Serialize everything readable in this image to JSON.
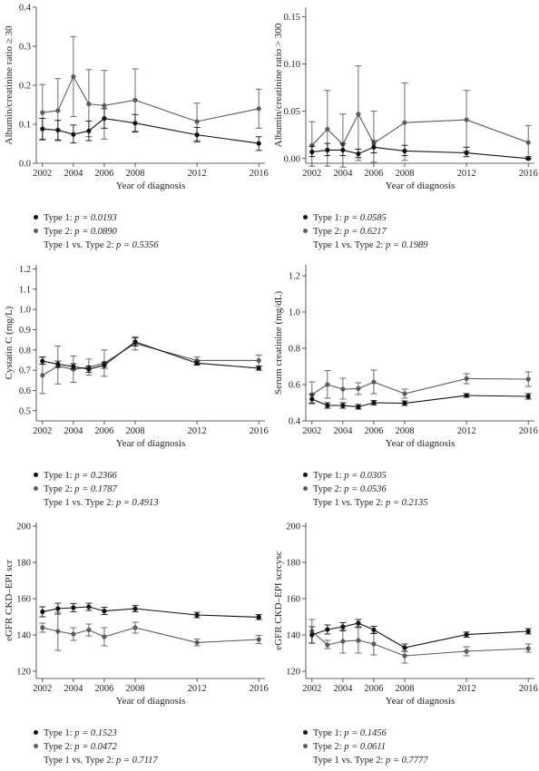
{
  "colors": {
    "type1": "#111111",
    "type2": "#5c5c5c",
    "axis": "#333333"
  },
  "chart_data": [
    {
      "type": "line",
      "xlabel": "Year of diagnosis",
      "ylabel": "Albumin/creatinine ratio ≥ 30",
      "xticks": [
        2002,
        2004,
        2006,
        2008,
        2012,
        2016
      ],
      "yticks": [
        "0.0",
        "0.1",
        "0.2",
        "0.3",
        "0.4"
      ],
      "ylim": [
        0,
        0.4
      ],
      "series": [
        {
          "name": "Type 1",
          "x": [
            2002,
            2003,
            2004,
            2005,
            2006,
            2008,
            2012,
            2016
          ],
          "y": [
            0.088,
            0.085,
            0.074,
            0.083,
            0.115,
            0.103,
            0.073,
            0.051
          ],
          "lo": [
            0.06,
            0.06,
            0.052,
            0.058,
            0.09,
            0.08,
            0.055,
            0.033
          ],
          "hi": [
            0.115,
            0.11,
            0.098,
            0.108,
            0.14,
            0.125,
            0.092,
            0.068
          ]
        },
        {
          "name": "Type 2",
          "x": [
            2002,
            2003,
            2004,
            2005,
            2006,
            2008,
            2012,
            2016
          ],
          "y": [
            0.13,
            0.135,
            0.222,
            0.152,
            0.148,
            0.162,
            0.107,
            0.14
          ],
          "lo": [
            0.062,
            0.058,
            0.12,
            0.068,
            0.062,
            0.082,
            0.058,
            0.09
          ],
          "hi": [
            0.202,
            0.217,
            0.325,
            0.24,
            0.238,
            0.242,
            0.154,
            0.19
          ]
        }
      ],
      "legend": [
        {
          "series": "Type 1",
          "label": "Type 1: ",
          "p": "p = 0.0193"
        },
        {
          "series": "Type 2",
          "label": "Type 2: ",
          "p": "p = 0.0890"
        },
        {
          "label": "Type 1 vs. Type 2: ",
          "p": "p = 0.5356"
        }
      ]
    },
    {
      "type": "line",
      "xlabel": "Year of diagnosis",
      "ylabel": "Albumin/creatinine ratio > 300",
      "xticks": [
        2002,
        2004,
        2006,
        2008,
        2012,
        2016
      ],
      "yticks": [
        "0.00",
        "0.05",
        "0.10",
        "0.15"
      ],
      "ylim": [
        -0.005,
        0.16
      ],
      "series": [
        {
          "name": "Type 1",
          "x": [
            2002,
            2003,
            2004,
            2005,
            2006,
            2008,
            2012,
            2016
          ],
          "y": [
            0.007,
            0.009,
            0.009,
            0.005,
            0.012,
            0.008,
            0.006,
            0.0
          ],
          "lo": [
            0.002,
            0.003,
            0.003,
            0.001,
            0.006,
            0.003,
            0.002,
            0.0
          ],
          "hi": [
            0.013,
            0.016,
            0.016,
            0.01,
            0.019,
            0.014,
            0.012,
            0.002
          ]
        },
        {
          "name": "Type 2",
          "x": [
            2002,
            2003,
            2004,
            2005,
            2006,
            2008,
            2012,
            2016
          ],
          "y": [
            0.014,
            0.031,
            0.015,
            0.047,
            0.016,
            0.038,
            0.041,
            0.017
          ],
          "lo": [
            -0.008,
            -0.008,
            -0.009,
            -0.002,
            -0.004,
            -0.002,
            0.008,
            -0.001
          ],
          "hi": [
            0.039,
            0.072,
            0.047,
            0.098,
            0.05,
            0.08,
            0.072,
            0.035
          ]
        }
      ],
      "legend": [
        {
          "series": "Type 1",
          "label": "Type 1: ",
          "p": "p = 0.0585"
        },
        {
          "series": "Type 2",
          "label": "Type 2: ",
          "p": "p = 0.6217"
        },
        {
          "label": "Type 1 vs. Type 2: ",
          "p": "p = 0.1989"
        }
      ]
    },
    {
      "type": "line",
      "xlabel": "Year of diagnosis",
      "ylabel": "Cystatin C (mg/L)",
      "xticks": [
        2002,
        2004,
        2006,
        2008,
        2012,
        2016
      ],
      "yticks": [
        "0.5",
        "0.6",
        "0.7",
        "0.8",
        "0.9",
        "1.0",
        "1.1",
        "1.2"
      ],
      "ylim": [
        0.45,
        1.22
      ],
      "series": [
        {
          "name": "Type 1",
          "x": [
            2002,
            2003,
            2004,
            2005,
            2006,
            2008,
            2012,
            2016
          ],
          "y": [
            0.745,
            0.73,
            0.718,
            0.705,
            0.725,
            0.84,
            0.735,
            0.71
          ],
          "lo": [
            0.73,
            0.715,
            0.705,
            0.69,
            0.71,
            0.82,
            0.725,
            0.7
          ],
          "hi": [
            0.765,
            0.745,
            0.732,
            0.72,
            0.74,
            0.86,
            0.745,
            0.72
          ]
        },
        {
          "name": "Type 2",
          "x": [
            2002,
            2003,
            2004,
            2005,
            2006,
            2008,
            2012,
            2016
          ],
          "y": [
            0.675,
            0.72,
            0.705,
            0.715,
            0.735,
            0.832,
            0.748,
            0.748
          ],
          "lo": [
            0.585,
            0.632,
            0.64,
            0.675,
            0.67,
            0.8,
            0.73,
            0.72
          ],
          "hi": [
            0.765,
            0.82,
            0.77,
            0.755,
            0.8,
            0.865,
            0.765,
            0.775
          ]
        }
      ],
      "legend": [
        {
          "series": "Type 1",
          "label": "Type 1: ",
          "p": "p = 0.2366"
        },
        {
          "series": "Type 2",
          "label": "Type 2: ",
          "p": "p = 0.1787"
        },
        {
          "label": "Type 1 vs. Type 2: ",
          "p": "p = 0.4913"
        }
      ]
    },
    {
      "type": "line",
      "xlabel": "Year of diagnosis",
      "ylabel": "Serum creatinine (mg/dL)",
      "xticks": [
        2002,
        2004,
        2006,
        2008,
        2012,
        2016
      ],
      "yticks": [
        "0.4",
        "0.6",
        "0.8",
        "1.0",
        "1.2"
      ],
      "ylim": [
        0.4,
        1.26
      ],
      "series": [
        {
          "name": "Type 1",
          "x": [
            2002,
            2003,
            2004,
            2005,
            2006,
            2008,
            2012,
            2016
          ],
          "y": [
            0.52,
            0.485,
            0.485,
            0.477,
            0.5,
            0.497,
            0.54,
            0.535
          ],
          "lo": [
            0.495,
            0.47,
            0.47,
            0.465,
            0.488,
            0.485,
            0.53,
            0.52
          ],
          "hi": [
            0.545,
            0.5,
            0.5,
            0.49,
            0.512,
            0.51,
            0.55,
            0.55
          ]
        },
        {
          "name": "Type 2",
          "x": [
            2002,
            2003,
            2004,
            2005,
            2006,
            2008,
            2012,
            2016
          ],
          "y": [
            0.545,
            0.6,
            0.575,
            0.578,
            0.614,
            0.55,
            0.633,
            0.63
          ],
          "lo": [
            0.5,
            0.525,
            0.52,
            0.545,
            0.55,
            0.525,
            0.605,
            0.59
          ],
          "hi": [
            0.615,
            0.677,
            0.635,
            0.61,
            0.68,
            0.575,
            0.66,
            0.67
          ]
        }
      ],
      "legend": [
        {
          "series": "Type 1",
          "label": "Type 1: ",
          "p": "p = 0.0305"
        },
        {
          "series": "Type 2",
          "label": "Type 2: ",
          "p": "p = 0.0536"
        },
        {
          "label": "Type 1 vs. Type 2: ",
          "p": "p = 0.2135"
        }
      ]
    },
    {
      "type": "line",
      "xlabel": "Year of diagnosis",
      "ylabel": "eGFR CKD–EPI scr",
      "xticks": [
        2002,
        2004,
        2006,
        2008,
        2012,
        2016
      ],
      "yticks": [
        "120",
        "140",
        "160",
        "180",
        "200"
      ],
      "ylim": [
        116,
        202
      ],
      "series": [
        {
          "name": "Type 1",
          "x": [
            2002,
            2003,
            2004,
            2005,
            2006,
            2008,
            2012,
            2016
          ],
          "y": [
            152.8,
            154.5,
            155,
            155.5,
            153.2,
            154.5,
            151,
            149.8
          ],
          "lo": [
            150,
            151.5,
            152.8,
            153.5,
            151.2,
            152.8,
            149.5,
            148.5
          ],
          "hi": [
            155.5,
            157.5,
            157.3,
            157.5,
            155.2,
            156.2,
            152.5,
            151.2
          ]
        },
        {
          "name": "Type 2",
          "x": [
            2002,
            2003,
            2004,
            2005,
            2006,
            2008,
            2012,
            2016
          ],
          "y": [
            144,
            142,
            140.5,
            142.8,
            139,
            144,
            135.8,
            137.5
          ],
          "lo": [
            141.5,
            131.5,
            137,
            139.5,
            134,
            141,
            134,
            135.3
          ],
          "hi": [
            146.5,
            152.5,
            144,
            146,
            144,
            147,
            137.8,
            139.8
          ]
        }
      ],
      "legend": [
        {
          "series": "Type 1",
          "label": "Type 1: ",
          "p": "p = 0.1523"
        },
        {
          "series": "Type 2",
          "label": "Type 2: ",
          "p": "p = 0.0472"
        },
        {
          "label": "Type 1 vs. Type 2: ",
          "p": "p = 0.7117"
        }
      ]
    },
    {
      "type": "line",
      "xlabel": "Year of diagnosis",
      "ylabel": "eGFR CKD–EPI scrcysc",
      "xticks": [
        2002,
        2004,
        2006,
        2008,
        2012,
        2016
      ],
      "yticks": [
        "120",
        "140",
        "160",
        "180",
        "200"
      ],
      "ylim": [
        116,
        202
      ],
      "series": [
        {
          "name": "Type 1",
          "x": [
            2002,
            2003,
            2004,
            2005,
            2006,
            2008,
            2012,
            2016
          ],
          "y": [
            140,
            143,
            144.5,
            146.5,
            142.8,
            133,
            140.2,
            142
          ],
          "lo": [
            135.5,
            140.5,
            142.2,
            144.5,
            140.8,
            131,
            138.8,
            140.5
          ],
          "hi": [
            144.5,
            145.5,
            146.8,
            148.5,
            144.8,
            135,
            141.6,
            143.5
          ]
        },
        {
          "name": "Type 2",
          "x": [
            2002,
            2003,
            2004,
            2005,
            2006,
            2008,
            2012,
            2016
          ],
          "y": [
            142,
            134.5,
            136.5,
            137,
            135,
            128.5,
            131,
            132.5
          ],
          "lo": [
            135.5,
            132.5,
            130,
            130,
            129,
            124.5,
            128.5,
            130.5
          ],
          "hi": [
            148.5,
            137,
            143,
            144,
            141,
            133,
            133.5,
            135
          ]
        }
      ],
      "legend": [
        {
          "series": "Type 1",
          "label": "Type 1: ",
          "p": "p = 0.1456"
        },
        {
          "series": "Type 2",
          "label": "Type 2: ",
          "p": "p = 0.0611"
        },
        {
          "label": "Type 1 vs. Type 2: ",
          "p": "p = 0.7777"
        }
      ]
    }
  ]
}
